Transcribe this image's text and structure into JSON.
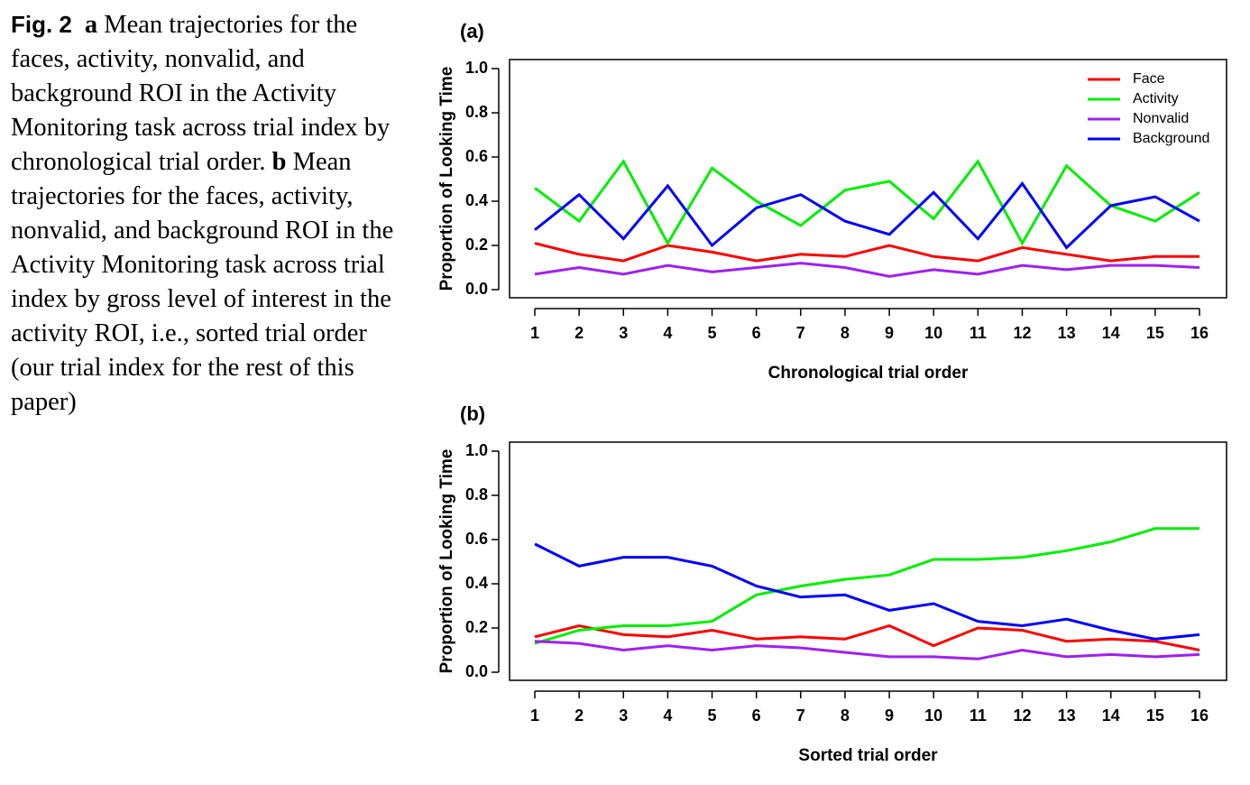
{
  "caption": {
    "fig_label": "Fig. 2",
    "part_a_marker": "a",
    "part_a_text": "Mean trajectories for the faces, activity, nonvalid, and background ROI in the Activity Monitoring task across trial index by chronological trial order.",
    "part_b_marker": "b",
    "part_b_text": "Mean trajectories for the faces, activity, nonvalid, and background ROI in the Activity Monitoring task across trial index by gross level of interest in the activity ROI, i.e., sorted trial order (our trial index for the rest of this paper)"
  },
  "colors": {
    "Face": "#ff0000",
    "Activity": "#00ee00",
    "Nonvalid": "#a020f0",
    "Background": "#0000ff"
  },
  "chart_data": [
    {
      "type": "line",
      "panel_label": "(a)",
      "xlabel": "Chronological trial order",
      "ylabel": "Proportion of Looking Time",
      "ylim": [
        0,
        1
      ],
      "yticks": [
        "0.0",
        "0.2",
        "0.4",
        "0.6",
        "0.8",
        "1.0"
      ],
      "x": [
        1,
        2,
        3,
        4,
        5,
        6,
        7,
        8,
        9,
        10,
        11,
        12,
        13,
        14,
        15,
        16
      ],
      "legend_position": "top-right",
      "series": [
        {
          "name": "Face",
          "values": [
            0.21,
            0.16,
            0.13,
            0.2,
            0.17,
            0.13,
            0.16,
            0.15,
            0.2,
            0.15,
            0.13,
            0.19,
            0.16,
            0.13,
            0.15,
            0.15
          ]
        },
        {
          "name": "Activity",
          "values": [
            0.46,
            0.31,
            0.58,
            0.21,
            0.55,
            0.4,
            0.29,
            0.45,
            0.49,
            0.32,
            0.58,
            0.21,
            0.56,
            0.38,
            0.31,
            0.44
          ]
        },
        {
          "name": "Nonvalid",
          "values": [
            0.07,
            0.1,
            0.07,
            0.11,
            0.08,
            0.1,
            0.12,
            0.1,
            0.06,
            0.09,
            0.07,
            0.11,
            0.09,
            0.11,
            0.11,
            0.1
          ]
        },
        {
          "name": "Background",
          "values": [
            0.27,
            0.43,
            0.23,
            0.47,
            0.2,
            0.37,
            0.43,
            0.31,
            0.25,
            0.44,
            0.23,
            0.48,
            0.19,
            0.38,
            0.42,
            0.31
          ]
        }
      ]
    },
    {
      "type": "line",
      "panel_label": "(b)",
      "xlabel": "Sorted trial order",
      "ylabel": "Proportion of Looking Time",
      "ylim": [
        0,
        1
      ],
      "yticks": [
        "0.0",
        "0.2",
        "0.4",
        "0.6",
        "0.8",
        "1.0"
      ],
      "x": [
        1,
        2,
        3,
        4,
        5,
        6,
        7,
        8,
        9,
        10,
        11,
        12,
        13,
        14,
        15,
        16
      ],
      "series": [
        {
          "name": "Face",
          "values": [
            0.16,
            0.21,
            0.17,
            0.16,
            0.19,
            0.15,
            0.16,
            0.15,
            0.21,
            0.12,
            0.2,
            0.19,
            0.14,
            0.15,
            0.14,
            0.1
          ]
        },
        {
          "name": "Activity",
          "values": [
            0.13,
            0.19,
            0.21,
            0.21,
            0.23,
            0.35,
            0.39,
            0.42,
            0.44,
            0.51,
            0.51,
            0.52,
            0.55,
            0.59,
            0.65,
            0.65
          ]
        },
        {
          "name": "Nonvalid",
          "values": [
            0.14,
            0.13,
            0.1,
            0.12,
            0.1,
            0.12,
            0.11,
            0.09,
            0.07,
            0.07,
            0.06,
            0.1,
            0.07,
            0.08,
            0.07,
            0.08
          ]
        },
        {
          "name": "Background",
          "values": [
            0.58,
            0.48,
            0.52,
            0.52,
            0.48,
            0.39,
            0.34,
            0.35,
            0.28,
            0.31,
            0.23,
            0.21,
            0.24,
            0.19,
            0.15,
            0.17
          ]
        }
      ]
    }
  ]
}
